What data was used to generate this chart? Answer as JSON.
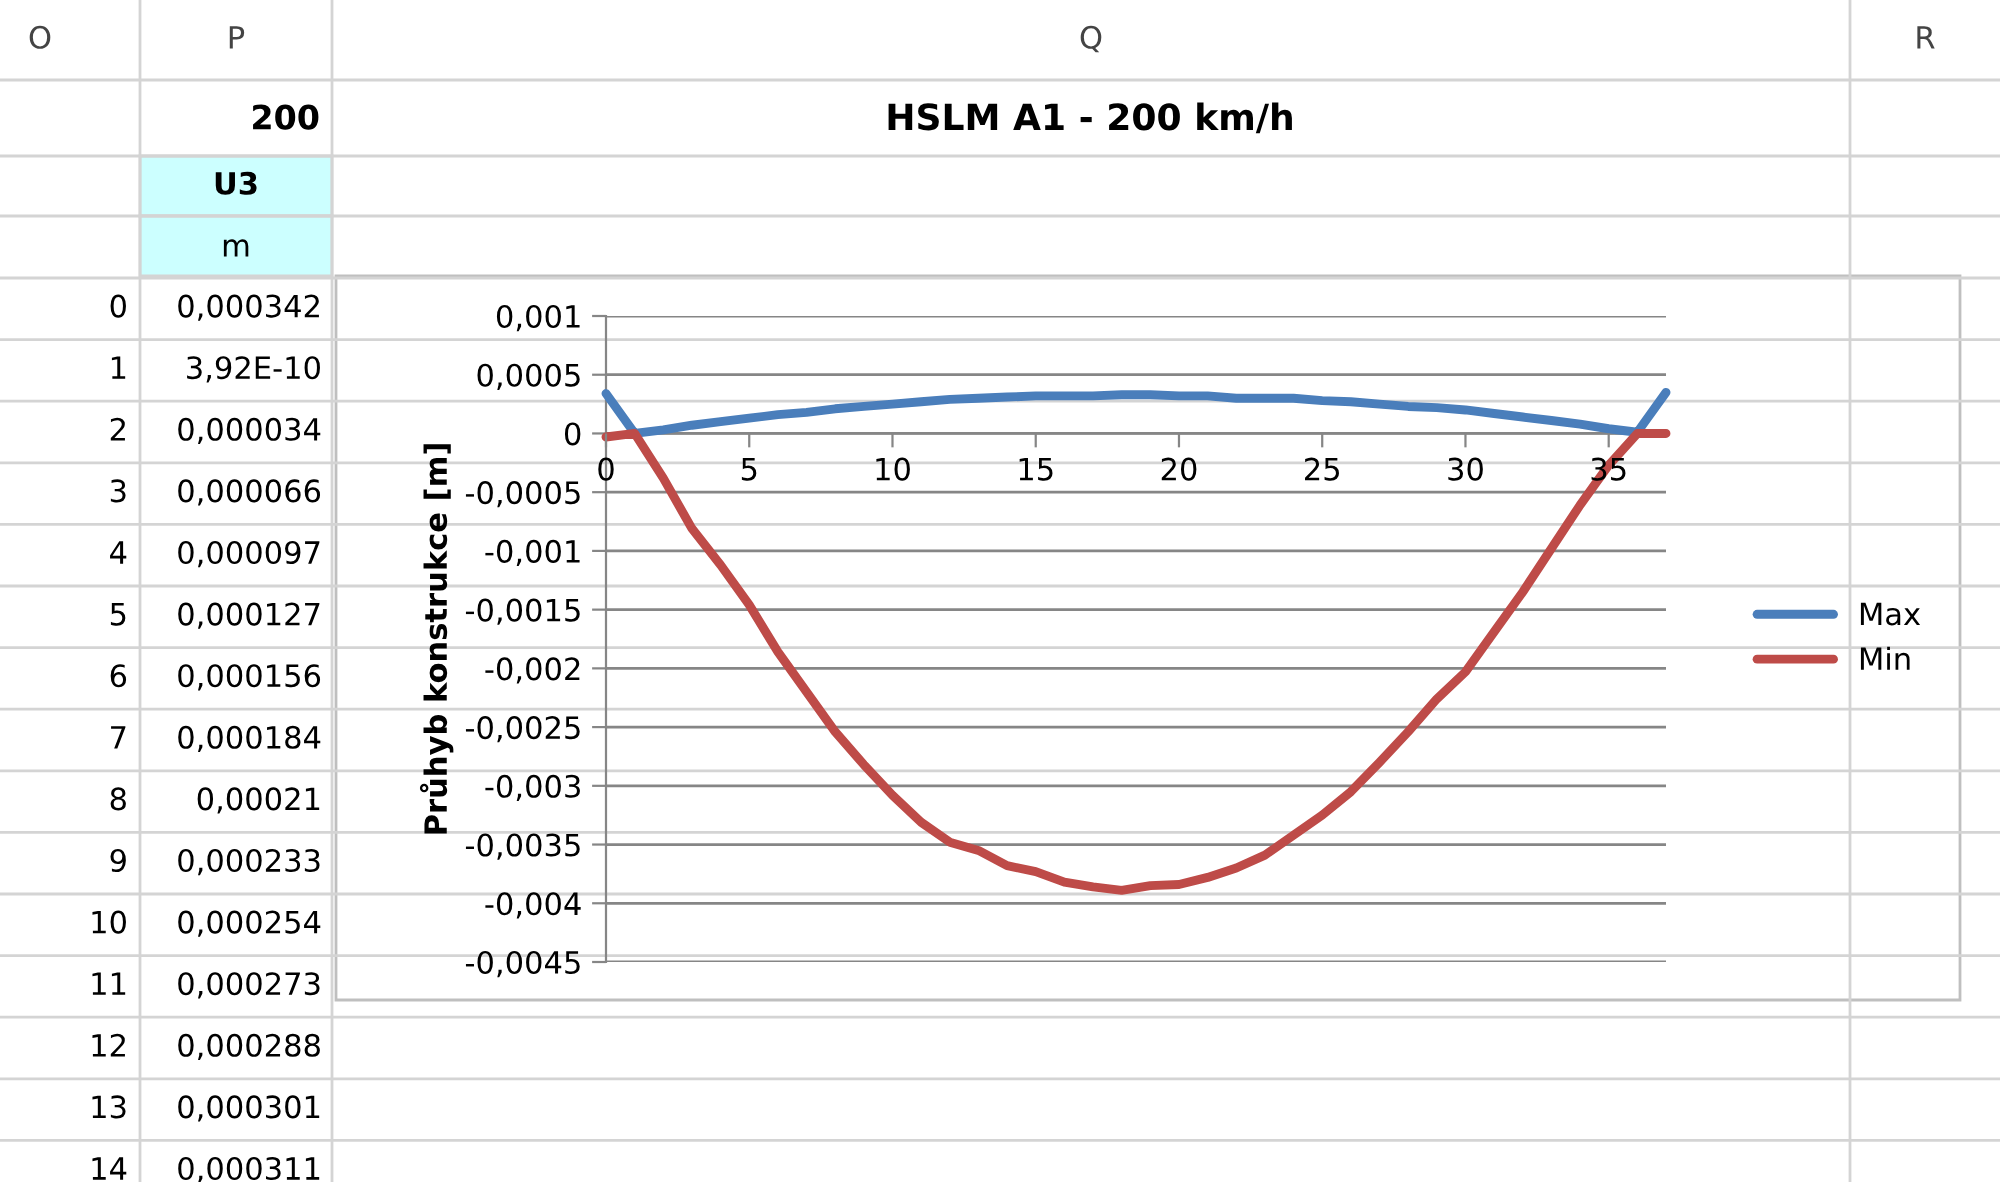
{
  "chart_data": {
    "type": "line",
    "title": "HSLM A1 - 200 km/h",
    "ylabel": "Průhyb konstrukce [m]",
    "annotations": [
      "O",
      "P",
      "Q",
      "R",
      "200",
      "U3",
      "m",
      "0",
      "0,000342",
      "1",
      "3,92E-10",
      "2",
      "0,000034",
      "3",
      "0,000066",
      "4",
      "0,000097",
      "5",
      "0,000127",
      "6",
      "0,000156",
      "7",
      "0,000184",
      "8",
      "0,00021",
      "9",
      "0,000233",
      "10",
      "0,000254",
      "11",
      "0,000273",
      "12",
      "0,000288",
      "13",
      "0,000301",
      "14",
      "0,000311"
    ],
    "x": [
      0,
      1,
      2,
      3,
      4,
      5,
      6,
      7,
      8,
      9,
      10,
      11,
      12,
      13,
      14,
      15,
      16,
      17,
      18,
      19,
      20,
      21,
      22,
      23,
      24,
      25,
      26,
      27,
      28,
      29,
      30,
      31,
      32,
      33,
      34,
      35,
      36,
      37
    ],
    "series": [
      {
        "name": "Max",
        "color": "#4a7ebb",
        "values": [
          0.00034,
          0,
          3e-05,
          7e-05,
          0.0001,
          0.00013,
          0.00016,
          0.00018,
          0.00021,
          0.00023,
          0.00025,
          0.00027,
          0.00029,
          0.0003,
          0.00031,
          0.00032,
          0.00032,
          0.00032,
          0.00033,
          0.00033,
          0.00032,
          0.00032,
          0.0003,
          0.0003,
          0.0003,
          0.00028,
          0.00027,
          0.00025,
          0.00023,
          0.00022,
          0.0002,
          0.00017,
          0.00014,
          0.00011,
          8e-05,
          4e-05,
          1e-05,
          0.00035
        ]
      },
      {
        "name": "Min",
        "color": "#be4b48",
        "values": [
          -3e-05,
          0,
          -0.00038,
          -0.00081,
          -0.00112,
          -0.00146,
          -0.00186,
          -0.0022,
          -0.00254,
          -0.00282,
          -0.00308,
          -0.00331,
          -0.00348,
          -0.00355,
          -0.00368,
          -0.00373,
          -0.00382,
          -0.00386,
          -0.00389,
          -0.00385,
          -0.00384,
          -0.00378,
          -0.0037,
          -0.00359,
          -0.00342,
          -0.00325,
          -0.00305,
          -0.0028,
          -0.00254,
          -0.00226,
          -0.00203,
          -0.00169,
          -0.00135,
          -0.00098,
          -0.00061,
          -0.00027,
          0,
          0
        ]
      }
    ],
    "xlim": [
      0,
      37
    ],
    "xticks": [
      0,
      5,
      10,
      15,
      20,
      25,
      30,
      35
    ],
    "ylim": [
      -0.0045,
      0.001
    ],
    "yticks": [
      {
        "value": 0.001,
        "label": "0,001"
      },
      {
        "value": 0.0005,
        "label": "0,0005"
      },
      {
        "value": 0,
        "label": "0"
      },
      {
        "value": -0.0005,
        "label": "-0,0005"
      },
      {
        "value": -0.001,
        "label": "-0,001"
      },
      {
        "value": -0.0015,
        "label": "-0,0015"
      },
      {
        "value": -0.002,
        "label": "-0,002"
      },
      {
        "value": -0.0025,
        "label": "-0,0025"
      },
      {
        "value": -0.003,
        "label": "-0,003"
      },
      {
        "value": -0.0035,
        "label": "-0,0035"
      },
      {
        "value": -0.004,
        "label": "-0,004"
      },
      {
        "value": -0.0045,
        "label": "-0,0045"
      }
    ],
    "grid": "y",
    "legend": "right",
    "marker": "none",
    "line_style": "solid"
  }
}
